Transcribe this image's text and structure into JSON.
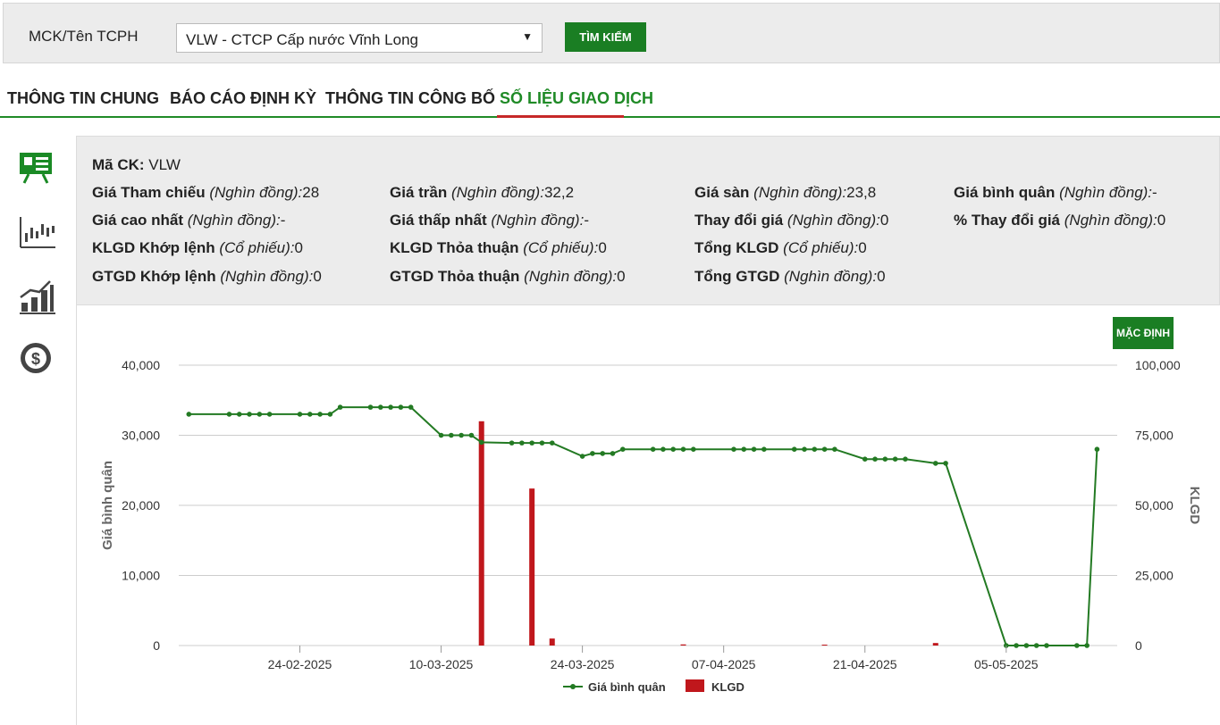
{
  "search": {
    "label": "MCK/Tên TCPH",
    "selected": "VLW - CTCP Cấp nước Vĩnh Long",
    "button": "TÌM KIẾM"
  },
  "tabs": [
    {
      "label": "THÔNG TIN CHUNG",
      "active": false
    },
    {
      "label": "BÁO CÁO ĐỊNH KỲ",
      "active": false
    },
    {
      "label": "THÔNG TIN CÔNG BỐ",
      "active": false
    },
    {
      "label": "SỐ LIỆU GIAO DỊCH",
      "active": true
    }
  ],
  "sidebar": {
    "icons": [
      "presentation-board-icon",
      "candlestick-chart-icon",
      "growth-bar-chart-icon",
      "dollar-coin-icon"
    ]
  },
  "info": {
    "ma_ck": {
      "label": "Mã CK:",
      "value": "VLW"
    },
    "rows": [
      [
        {
          "label": "Giá Tham chiếu",
          "unit": "(Nghìn đồng):",
          "value": "28"
        },
        {
          "label": "Giá trần",
          "unit": "(Nghìn đồng):",
          "value": "32,2"
        },
        {
          "label": "Giá sàn",
          "unit": "(Nghìn đồng):",
          "value": "23,8"
        },
        {
          "label": "Giá bình quân",
          "unit": "(Nghìn đồng):",
          "value": "-"
        }
      ],
      [
        {
          "label": "Giá cao nhất",
          "unit": "(Nghìn đồng):",
          "value": "-"
        },
        {
          "label": "Giá thấp nhất",
          "unit": "(Nghìn đồng):",
          "value": "-"
        },
        {
          "label": "Thay đổi giá",
          "unit": "(Nghìn đồng):",
          "value": "0"
        },
        {
          "label": "% Thay đổi giá",
          "unit": "(Nghìn đồng):",
          "value": "0"
        }
      ],
      [
        {
          "label": "KLGD Khớp lệnh",
          "unit": "(Cổ phiếu):",
          "value": "0"
        },
        {
          "label": "KLGD Thỏa thuận",
          "unit": "(Cổ phiếu):",
          "value": "0"
        },
        {
          "label": "Tổng KLGD",
          "unit": "(Cổ phiếu):",
          "value": "0"
        }
      ],
      [
        {
          "label": "GTGD Khớp lệnh",
          "unit": "(Nghìn đồng):",
          "value": "0"
        },
        {
          "label": "GTGD Thỏa thuận",
          "unit": "(Nghìn đồng):",
          "value": "0"
        },
        {
          "label": "Tổng GTGD",
          "unit": "(Nghìn đồng):",
          "value": "0"
        }
      ]
    ]
  },
  "chart_controls": {
    "default_button": "MẶC ĐỊNH"
  },
  "colors": {
    "accent_green": "#1a7e23",
    "price_line": "#237a23",
    "volume_bar": "#c0171c"
  },
  "chart_data": {
    "type": "line",
    "ylabel_left": "Giá bình quân",
    "ylabel_right": "KLGD",
    "ylim_left": [
      0,
      40000
    ],
    "ylim_right": [
      0,
      100000
    ],
    "yticks_left": [
      "0",
      "10,000",
      "20,000",
      "30,000",
      "40,000"
    ],
    "yticks_right": [
      "0",
      "25,000",
      "50,000",
      "75,000",
      "100,000"
    ],
    "xticks": [
      "24-02-2025",
      "10-03-2025",
      "24-03-2025",
      "07-04-2025",
      "21-04-2025",
      "05-05-2025"
    ],
    "grid": true,
    "legend": "bottom",
    "series": [
      {
        "name": "Giá bình quân",
        "kind": "line",
        "x": [
          "2025-02-13",
          "2025-02-17",
          "2025-02-18",
          "2025-02-19",
          "2025-02-20",
          "2025-02-21",
          "2025-02-24",
          "2025-02-25",
          "2025-02-26",
          "2025-02-27",
          "2025-02-28",
          "2025-03-03",
          "2025-03-04",
          "2025-03-05",
          "2025-03-06",
          "2025-03-07",
          "2025-03-10",
          "2025-03-11",
          "2025-03-12",
          "2025-03-13",
          "2025-03-14",
          "2025-03-17",
          "2025-03-18",
          "2025-03-19",
          "2025-03-20",
          "2025-03-21",
          "2025-03-24",
          "2025-03-25",
          "2025-03-26",
          "2025-03-27",
          "2025-03-28",
          "2025-03-31",
          "2025-04-01",
          "2025-04-02",
          "2025-04-03",
          "2025-04-04",
          "2025-04-08",
          "2025-04-09",
          "2025-04-10",
          "2025-04-11",
          "2025-04-14",
          "2025-04-15",
          "2025-04-16",
          "2025-04-17",
          "2025-04-18",
          "2025-04-21",
          "2025-04-22",
          "2025-04-23",
          "2025-04-24",
          "2025-04-25",
          "2025-04-28",
          "2025-04-29",
          "2025-05-05",
          "2025-05-06",
          "2025-05-07",
          "2025-05-08",
          "2025-05-09",
          "2025-05-12",
          "2025-05-13",
          "2025-05-14"
        ],
        "values": [
          33000,
          33000,
          33000,
          33000,
          33000,
          33000,
          33000,
          33000,
          33000,
          33000,
          34000,
          34000,
          34000,
          34000,
          34000,
          34000,
          30000,
          30000,
          30000,
          30000,
          29000,
          28900,
          28900,
          28900,
          28900,
          28900,
          27000,
          27400,
          27400,
          27400,
          28000,
          28000,
          28000,
          28000,
          28000,
          28000,
          28000,
          28000,
          28000,
          28000,
          28000,
          28000,
          28000,
          28000,
          28000,
          26600,
          26600,
          26600,
          26600,
          26600,
          26000,
          26000,
          0,
          0,
          0,
          0,
          0,
          0,
          0,
          28000
        ]
      },
      {
        "name": "KLGD",
        "kind": "bar",
        "axis": "right",
        "x": [
          "2025-03-14",
          "2025-03-19",
          "2025-03-21",
          "2025-04-03",
          "2025-04-17",
          "2025-04-28"
        ],
        "values": [
          80000,
          56000,
          2500,
          400,
          100,
          900
        ]
      }
    ]
  }
}
